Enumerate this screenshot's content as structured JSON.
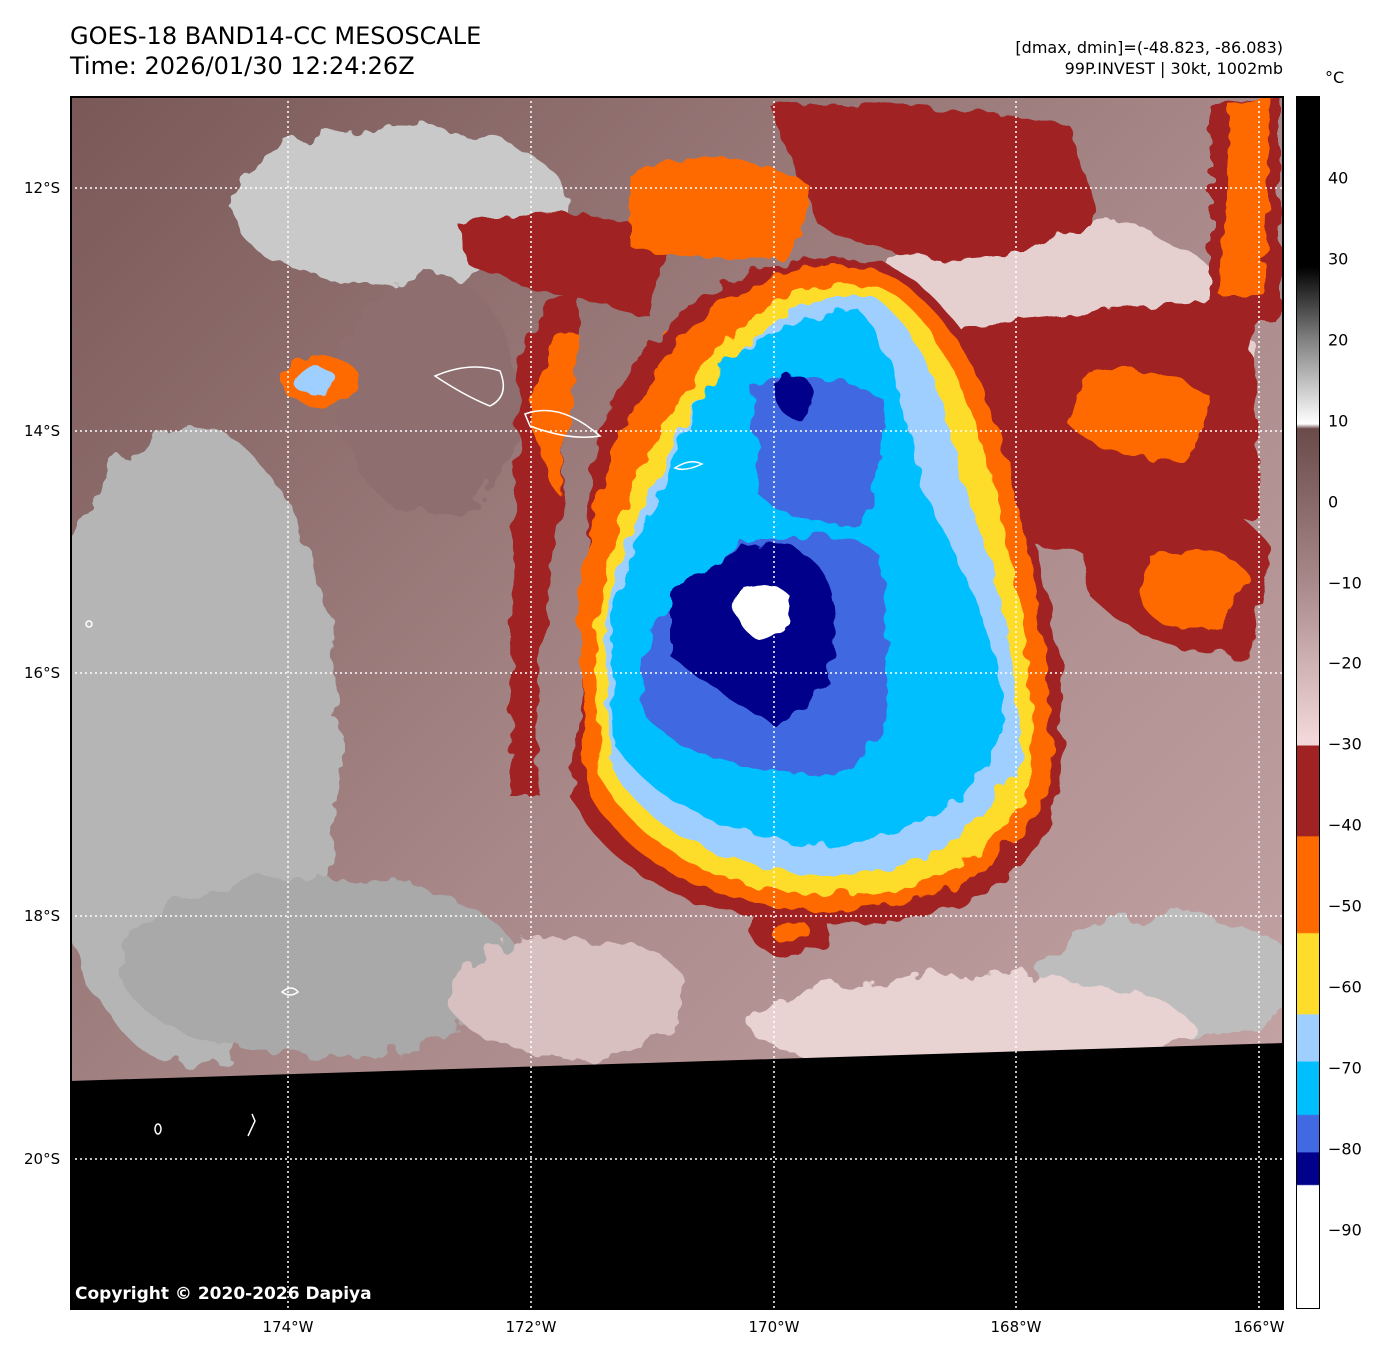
{
  "header": {
    "title_line1": "GOES-18 BAND14-CC MESOSCALE",
    "title_line2": "Time: 2026/01/30 12:24:26Z",
    "range_info": "[dmax, dmin]=(-48.823, -86.083)",
    "storm_info": "99P.INVEST | 30kt, 1002mb"
  },
  "map": {
    "lon_labels": [
      "174°W",
      "172°W",
      "170°W",
      "168°W",
      "166°W"
    ],
    "lat_labels": [
      "12°S",
      "14°S",
      "16°S",
      "18°S",
      "20°S"
    ],
    "copyright": "Copyright © 2020-2026 Dapiya"
  },
  "colorbar": {
    "unit": "°C",
    "range": [
      -100,
      50
    ],
    "ticks": [
      "40",
      "30",
      "20",
      "10",
      "0",
      "−10",
      "−20",
      "−30",
      "−40",
      "−50",
      "−60",
      "−70",
      "−80",
      "−90"
    ],
    "colors": {
      "white": "#ffffff",
      "navy": "#00008b",
      "royalblue": "#4169e1",
      "deepskyblue": "#00bfff",
      "lightblue": "#9fcfff",
      "gold": "#fddc2c",
      "orange": "#ff6a00",
      "darkred": "#a02222",
      "pink": "#f2d8d8",
      "brown": "#6b4a4a"
    }
  }
}
